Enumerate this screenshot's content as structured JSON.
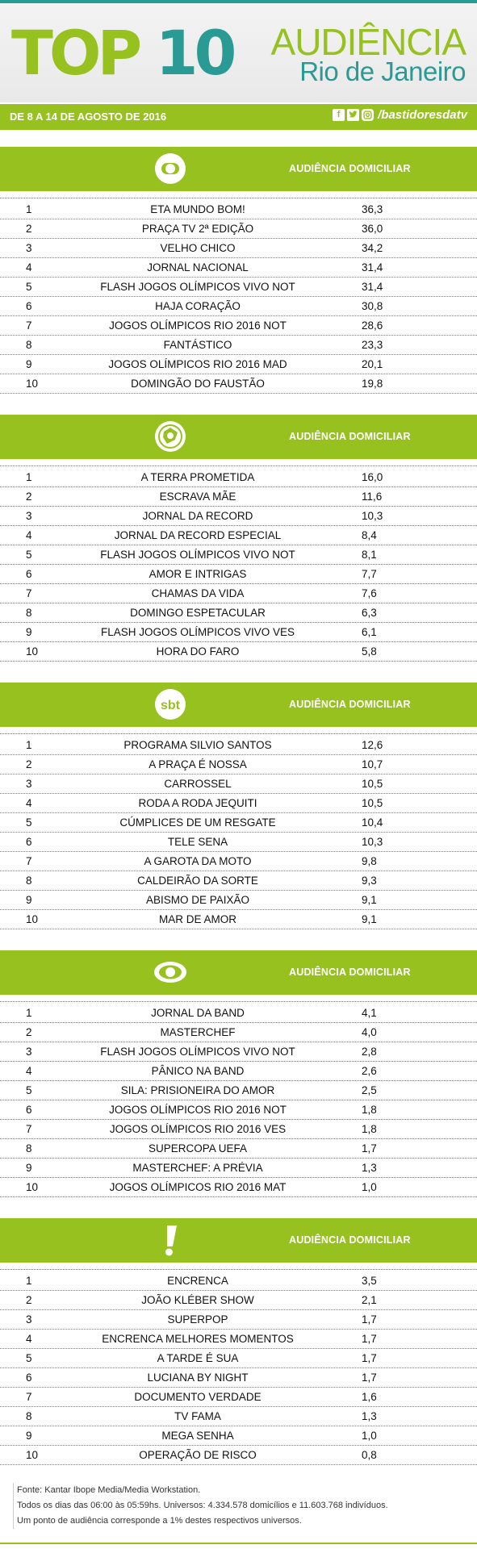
{
  "header": {
    "top_part1": "TOP",
    "top_part2": "10",
    "audiencia": "AUDIÊNCIA",
    "city": "Rio de Janeiro",
    "date_range": "DE 8 A 14 DE AGOSTO DE 2016",
    "social_handle": "/bastidoresdatv",
    "social_icons": [
      "facebook-icon",
      "twitter-icon",
      "instagram-icon"
    ]
  },
  "colors": {
    "green": "#96c11e",
    "teal": "#2a9a94"
  },
  "sections": [
    {
      "network_icon": "globo-logo",
      "label": "AUDIÊNCIA DOMICILIAR",
      "rows": [
        {
          "rank": "1",
          "name": "ETA MUNDO BOM!",
          "value": "36,3"
        },
        {
          "rank": "2",
          "name": "PRAÇA TV 2ª EDIÇÃO",
          "value": "36,0"
        },
        {
          "rank": "3",
          "name": "VELHO CHICO",
          "value": "34,2"
        },
        {
          "rank": "4",
          "name": "JORNAL NACIONAL",
          "value": "31,4"
        },
        {
          "rank": "5",
          "name": "FLASH JOGOS OLÍMPICOS VIVO NOT",
          "value": "31,4"
        },
        {
          "rank": "6",
          "name": "HAJA CORAÇÃO",
          "value": "30,8"
        },
        {
          "rank": "7",
          "name": "JOGOS OLÍMPICOS RIO 2016 NOT",
          "value": "28,6"
        },
        {
          "rank": "8",
          "name": "FANTÁSTICO",
          "value": "23,3"
        },
        {
          "rank": "9",
          "name": "JOGOS OLÍMPICOS RIO 2016 MAD",
          "value": "20,1"
        },
        {
          "rank": "10",
          "name": "DOMINGÃO DO FAUSTÃO",
          "value": "19,8"
        }
      ]
    },
    {
      "network_icon": "record-logo",
      "label": "AUDIÊNCIA DOMICILIAR",
      "rows": [
        {
          "rank": "1",
          "name": "A TERRA PROMETIDA",
          "value": "16,0"
        },
        {
          "rank": "2",
          "name": "ESCRAVA MÃE",
          "value": "11,6"
        },
        {
          "rank": "3",
          "name": "JORNAL DA RECORD",
          "value": "10,3"
        },
        {
          "rank": "4",
          "name": "JORNAL DA RECORD ESPECIAL",
          "value": "8,4"
        },
        {
          "rank": "5",
          "name": "FLASH JOGOS OLÍMPICOS VIVO NOT",
          "value": "8,1"
        },
        {
          "rank": "6",
          "name": "AMOR E INTRIGAS",
          "value": "7,7"
        },
        {
          "rank": "7",
          "name": "CHAMAS DA VIDA",
          "value": "7,6"
        },
        {
          "rank": "8",
          "name": "DOMINGO ESPETACULAR",
          "value": "6,3"
        },
        {
          "rank": "9",
          "name": "FLASH JOGOS OLÍMPICOS VIVO VES",
          "value": "6,1"
        },
        {
          "rank": "10",
          "name": "HORA DO FARO",
          "value": "5,8"
        }
      ]
    },
    {
      "network_icon": "sbt-logo",
      "logo_text": "sbt",
      "label": "AUDIÊNCIA DOMICILIAR",
      "rows": [
        {
          "rank": "1",
          "name": "PROGRAMA SILVIO SANTOS",
          "value": "12,6"
        },
        {
          "rank": "2",
          "name": "A PRAÇA É NOSSA",
          "value": "10,7"
        },
        {
          "rank": "3",
          "name": "CARROSSEL",
          "value": "10,5"
        },
        {
          "rank": "4",
          "name": "RODA A RODA JEQUITI",
          "value": "10,5"
        },
        {
          "rank": "5",
          "name": "CÚMPLICES DE UM RESGATE",
          "value": "10,4"
        },
        {
          "rank": "6",
          "name": "TELE SENA",
          "value": "10,3"
        },
        {
          "rank": "7",
          "name": "A GAROTA DA MOTO",
          "value": "9,8"
        },
        {
          "rank": "8",
          "name": "CALDEIRÃO DA SORTE",
          "value": "9,3"
        },
        {
          "rank": "9",
          "name": "ABISMO DE PAIXÃO",
          "value": "9,1"
        },
        {
          "rank": "10",
          "name": "MAR DE AMOR",
          "value": "9,1"
        }
      ]
    },
    {
      "network_icon": "band-logo",
      "label": "AUDIÊNCIA DOMICILIAR",
      "rows": [
        {
          "rank": "1",
          "name": "JORNAL DA BAND",
          "value": "4,1"
        },
        {
          "rank": "2",
          "name": "MASTERCHEF",
          "value": "4,0"
        },
        {
          "rank": "3",
          "name": "FLASH JOGOS OLÍMPICOS VIVO NOT",
          "value": "2,8"
        },
        {
          "rank": "4",
          "name": "PÂNICO NA BAND",
          "value": "2,6"
        },
        {
          "rank": "5",
          "name": "SILA: PRISIONEIRA DO AMOR",
          "value": "2,5"
        },
        {
          "rank": "6",
          "name": "JOGOS OLÍMPICOS RIO 2016 NOT",
          "value": "1,8"
        },
        {
          "rank": "7",
          "name": "JOGOS OLÍMPICOS RIO 2016 VES",
          "value": "1,8"
        },
        {
          "rank": "8",
          "name": "SUPERCOPA UEFA",
          "value": "1,7"
        },
        {
          "rank": "9",
          "name": "MASTERCHEF: A PRÉVIA",
          "value": "1,3"
        },
        {
          "rank": "10",
          "name": "JOGOS OLÍMPICOS RIO 2016 MAT",
          "value": "1,0"
        }
      ]
    },
    {
      "network_icon": "redetv-logo",
      "label": "AUDIÊNCIA DOMICILIAR",
      "rows": [
        {
          "rank": "1",
          "name": "ENCRENCA",
          "value": "3,5"
        },
        {
          "rank": "2",
          "name": "JOÃO KLÉBER SHOW",
          "value": "2,1"
        },
        {
          "rank": "3",
          "name": "SUPERPOP",
          "value": "1,7"
        },
        {
          "rank": "4",
          "name": "ENCRENCA MELHORES MOMENTOS",
          "value": "1,7"
        },
        {
          "rank": "5",
          "name": "A TARDE É SUA",
          "value": "1,7"
        },
        {
          "rank": "6",
          "name": "LUCIANA BY NIGHT",
          "value": "1,7"
        },
        {
          "rank": "7",
          "name": "DOCUMENTO VERDADE",
          "value": "1,6"
        },
        {
          "rank": "8",
          "name": "TV FAMA",
          "value": "1,3"
        },
        {
          "rank": "9",
          "name": "MEGA SENHA",
          "value": "1,0"
        },
        {
          "rank": "10",
          "name": "OPERAÇÃO DE RISCO",
          "value": "0,8"
        }
      ]
    }
  ],
  "footer": {
    "line1": "Fonte: Kantar Ibope Media/Media Workstation.",
    "line2": "Todos os dias das 06:00 às 05:59hs. Universos: 4.334.578 domicílios e 11.603.768 indivíduos.",
    "line3": "Um ponto de audiência corresponde a 1% destes respectivos universos."
  }
}
